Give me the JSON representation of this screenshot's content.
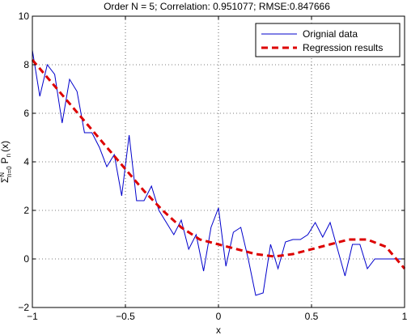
{
  "chart_data": {
    "type": "line",
    "title": "Order N = 5; Correlation: 0.951077; RMSE:0.847666",
    "xlabel": "x",
    "ylabel": {
      "sigma": "Σ",
      "sup": "N",
      "sub": "n=0",
      "p": "P",
      "p_sub": "n",
      "arg": "(x)"
    },
    "xlim": [
      -1,
      1
    ],
    "ylim": [
      -2,
      10
    ],
    "xticks": [
      -1,
      -0.5,
      0,
      0.5,
      1
    ],
    "xtick_labels": [
      "−1",
      "−0.5",
      "0",
      "0.5",
      "1"
    ],
    "yticks": [
      -2,
      0,
      2,
      4,
      6,
      8,
      10
    ],
    "ytick_labels": [
      "−2",
      "0",
      "2",
      "4",
      "6",
      "8",
      "10"
    ],
    "grid": true,
    "legend_position": "top-right",
    "series": [
      {
        "name": "Orignial data",
        "color": "#0000cc",
        "style": "solid",
        "x": [
          -1,
          -0.96,
          -0.92,
          -0.88,
          -0.84,
          -0.8,
          -0.76,
          -0.72,
          -0.68,
          -0.64,
          -0.6,
          -0.56,
          -0.52,
          -0.48,
          -0.44,
          -0.4,
          -0.36,
          -0.32,
          -0.28,
          -0.24,
          -0.2,
          -0.16,
          -0.12,
          -0.08,
          -0.04,
          0.0,
          0.04,
          0.08,
          0.12,
          0.16,
          0.2,
          0.24,
          0.28,
          0.32,
          0.36,
          0.4,
          0.44,
          0.48,
          0.52,
          0.56,
          0.6,
          0.64,
          0.68,
          0.72,
          0.76,
          0.8,
          0.84,
          0.88,
          0.92,
          0.96,
          1.0
        ],
        "values": [
          8.6,
          6.7,
          8.0,
          7.6,
          5.6,
          7.4,
          6.9,
          5.2,
          5.2,
          4.6,
          3.8,
          4.3,
          2.6,
          5.1,
          2.4,
          2.4,
          3.0,
          2.0,
          1.5,
          1.0,
          1.6,
          0.4,
          1.0,
          -0.5,
          1.3,
          2.1,
          -0.3,
          1.1,
          1.3,
          0.0,
          -1.5,
          -1.4,
          0.6,
          -0.4,
          0.7,
          0.8,
          0.8,
          1.0,
          1.5,
          0.9,
          1.5,
          0.4,
          -0.7,
          0.6,
          0.6,
          -0.4,
          0.0,
          0.0,
          0.0,
          0.0,
          0.0
        ]
      },
      {
        "name": "Regression results",
        "color": "#dd0000",
        "style": "dashed",
        "x": [
          -1.0,
          -0.9,
          -0.8,
          -0.7,
          -0.6,
          -0.5,
          -0.4,
          -0.3,
          -0.2,
          -0.1,
          0.0,
          0.1,
          0.2,
          0.3,
          0.4,
          0.5,
          0.6,
          0.7,
          0.8,
          0.9,
          1.0
        ],
        "values": [
          8.2,
          7.3,
          6.4,
          5.5,
          4.6,
          3.7,
          2.8,
          2.0,
          1.3,
          0.8,
          0.6,
          0.4,
          0.2,
          0.1,
          0.2,
          0.4,
          0.6,
          0.8,
          0.8,
          0.5,
          -0.4
        ]
      }
    ]
  }
}
